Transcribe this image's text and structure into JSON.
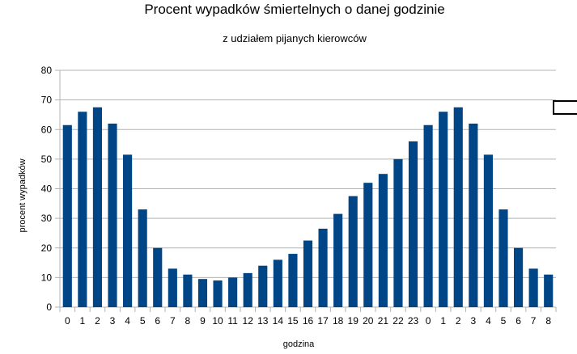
{
  "chart_data": {
    "type": "bar",
    "title": "Procent wypadków śmiertelnych o danej godzinie",
    "subtitle": "z udziałem pijanych kierowców",
    "xlabel": "godzina",
    "ylabel": "procent wypadków",
    "ylim": [
      0,
      80
    ],
    "yticks": [
      0,
      10,
      20,
      30,
      40,
      50,
      60,
      70,
      80
    ],
    "grid": true,
    "bar_color": "#004586",
    "categories": [
      "0",
      "1",
      "2",
      "3",
      "4",
      "5",
      "6",
      "7",
      "8",
      "9",
      "10",
      "11",
      "12",
      "13",
      "14",
      "15",
      "16",
      "17",
      "18",
      "19",
      "20",
      "21",
      "22",
      "23",
      "0",
      "1",
      "2",
      "3",
      "4",
      "5",
      "6",
      "7",
      "8"
    ],
    "values": [
      61.5,
      66,
      67.5,
      62,
      51.5,
      33,
      20,
      13,
      11,
      9.5,
      9,
      10,
      11.5,
      14,
      16,
      18,
      22.5,
      26.5,
      31.5,
      37.5,
      42,
      45,
      50,
      56,
      61.5,
      66,
      67.5,
      62,
      51.5,
      33,
      20,
      13,
      11
    ]
  }
}
